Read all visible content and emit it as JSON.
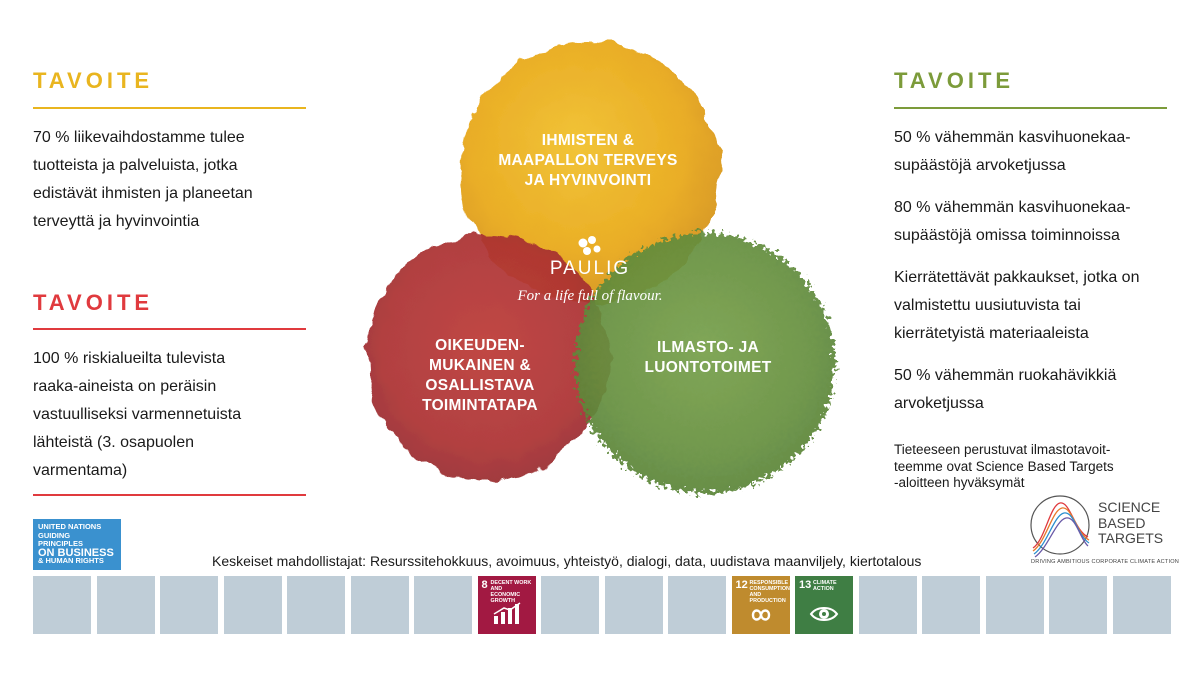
{
  "left": {
    "goal1": {
      "title": "TAVOITE",
      "lines": [
        "70 % liikevaihdostamme tulee",
        "tuotteista ja palveluista, jotka",
        "edistävät ihmisten ja planeetan",
        "terveyttä ja hyvinvointia"
      ]
    },
    "goal2": {
      "title": "TAVOITE",
      "lines": [
        "100 % riskialueilta tulevista",
        "raaka-aineista on peräisin",
        "vastuulliseksi varmennetuista",
        "lähteistä (3. osapuolen",
        "varmentama)"
      ]
    }
  },
  "right": {
    "goal": {
      "title": "TAVOITE",
      "items": [
        [
          "50 % vähemmän kasvihuonekaa-",
          "supäästöjä arvoketjussa"
        ],
        [
          "80 % vähemmän kasvihuonekaa-",
          "supäästöjä omissa toiminnoissa"
        ],
        [
          "Kierrätettävät pakkaukset, jotka on",
          "valmistettu uusiutuvista tai",
          "kierrätetyistä materiaaleista"
        ],
        [
          "50 % vähemmän ruokahävikkiä",
          "arvoketjussa"
        ]
      ]
    },
    "sbt_note": [
      "Tieteeseen perustuvat ilmastotavoit-",
      "teemme ovat Science Based Targets",
      "-aloitteen hyväksymät"
    ],
    "sbt_logo": {
      "line1": "SCIENCE",
      "line2": "BASED",
      "line3": "TARGETS",
      "tagline": "DRIVING AMBITIOUS CORPORATE CLIMATE ACTION"
    }
  },
  "circles": {
    "top": [
      "IHMISTEN &",
      "MAAPALLON TERVEYS",
      "JA HYVINVOINTI"
    ],
    "left": [
      "OIKEUDEN-",
      "MUKAINEN &",
      "OSALLISTAVA",
      "TOIMINTATAPA"
    ],
    "right": [
      "ILMASTO- JA",
      "LUONTOTOIMET"
    ]
  },
  "brand": {
    "name": "PAULIG",
    "tagline": "For a life full of flavour."
  },
  "un_badge": [
    "UNITED NATIONS",
    "GUIDING PRINCIPLES",
    "ON BUSINESS",
    "& HUMAN RIGHTS"
  ],
  "enablers": "Keskeiset mahdollistajat: Resurssitehokkuus, avoimuus, yhteistyö, dialogi, data, uudistava maanviljely, kiertotalous",
  "sdg": {
    "active": [
      {
        "number": "8",
        "name": "DECENT WORK AND ECONOMIC GROWTH",
        "color": "#a21942",
        "icon": "growth-chart-icon"
      },
      {
        "number": "12",
        "name": "RESPONSIBLE CONSUMPTION AND PRODUCTION",
        "color": "#bf8b2e",
        "icon": "infinity-icon"
      },
      {
        "number": "13",
        "name": "CLIMATE ACTION",
        "color": "#3f7e44",
        "icon": "eye-globe-icon"
      }
    ],
    "tile_color": "#bfcdd7"
  },
  "colors": {
    "yellow": "#e9b51f",
    "red": "#e03a3e",
    "green": "#7c9b3a"
  }
}
